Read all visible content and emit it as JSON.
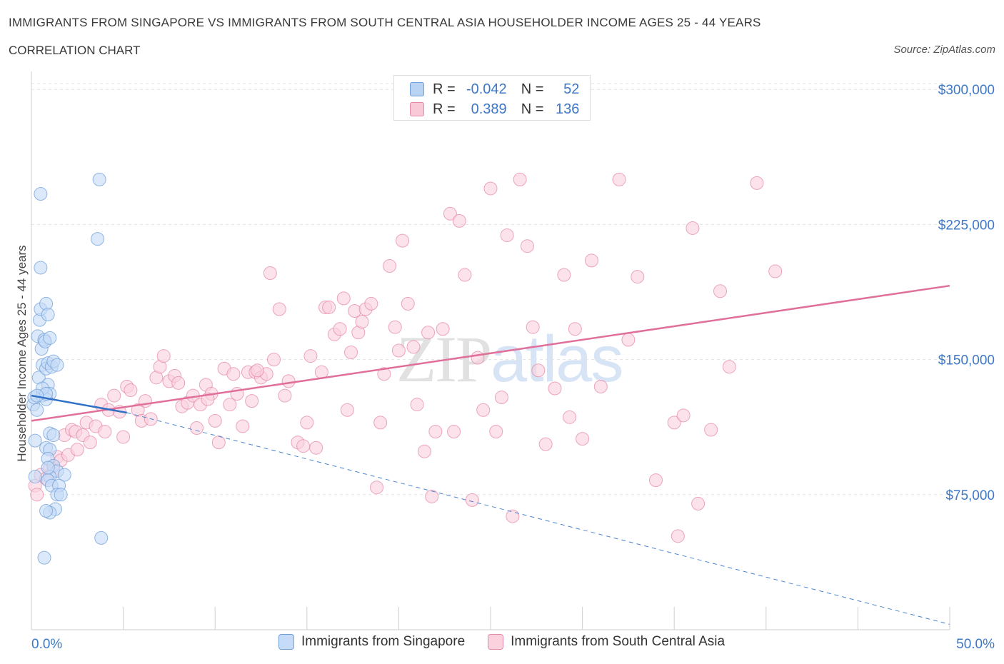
{
  "header": {
    "title": "IMMIGRANTS FROM SINGAPORE VS IMMIGRANTS FROM SOUTH CENTRAL ASIA HOUSEHOLDER INCOME AGES 25 - 44 YEARS",
    "subtitle": "CORRELATION CHART",
    "source": "Source: ZipAtlas.com"
  },
  "watermark": {
    "part1": "ZIP",
    "part2": "atlas"
  },
  "legend": {
    "rows": [
      {
        "r_label": "R =",
        "r_value": "-0.042",
        "n_label": "N =",
        "n_value": "52",
        "color": "#a8c8f0",
        "border": "#6f9fd8"
      },
      {
        "r_label": "R =",
        "r_value": "0.389",
        "n_label": "N =",
        "n_value": "136",
        "color": "#f7c0d0",
        "border": "#e58aa6"
      }
    ]
  },
  "bottom_legend": [
    {
      "label": "Immigrants from Singapore",
      "color": "#c5dbf7",
      "border": "#6f9fd8"
    },
    {
      "label": "Immigrants from South Central Asia",
      "color": "#fad1dd",
      "border": "#e58aa6"
    }
  ],
  "chart_data": {
    "type": "scatter",
    "title": "IMMIGRANTS FROM SINGAPORE VS IMMIGRANTS FROM SOUTH CENTRAL ASIA HOUSEHOLDER INCOME AGES 25 - 44 YEARS",
    "xlabel": "",
    "ylabel": "Householder Income Ages 25 - 44 years",
    "xlim": [
      0,
      50
    ],
    "ylim": [
      0,
      310000
    ],
    "x_tick_labels": [
      "0.0%",
      "50.0%"
    ],
    "y_ticks": [
      75000,
      150000,
      225000,
      300000
    ],
    "y_tick_labels": [
      "$75,000",
      "$150,000",
      "$225,000",
      "$300,000"
    ],
    "grid": "horizontal dashed",
    "series": [
      {
        "name": "Immigrants from Singapore",
        "color": "#6f9fd8",
        "fill": "#c5dbf7",
        "trend": {
          "x": [
            0,
            5.2
          ],
          "y": [
            130000,
            120500
          ]
        },
        "trend_extended": {
          "x": [
            5.2,
            50
          ],
          "y": [
            120500,
            3000
          ]
        },
        "points": [
          [
            0.1,
            125000
          ],
          [
            0.2,
            105000
          ],
          [
            0.15,
            129000
          ],
          [
            0.3,
            122000
          ],
          [
            0.4,
            140000
          ],
          [
            0.2,
            85000
          ],
          [
            0.35,
            163000
          ],
          [
            0.45,
            172000
          ],
          [
            0.5,
            178000
          ],
          [
            0.55,
            156000
          ],
          [
            0.6,
            147000
          ],
          [
            0.6,
            130000
          ],
          [
            0.7,
            161000
          ],
          [
            0.75,
            160000
          ],
          [
            0.8,
            181000
          ],
          [
            0.5,
            242000
          ],
          [
            0.5,
            201000
          ],
          [
            0.9,
            175000
          ],
          [
            1.0,
            162000
          ],
          [
            0.8,
            145000
          ],
          [
            0.9,
            148000
          ],
          [
            1.1,
            146000
          ],
          [
            1.2,
            149000
          ],
          [
            1.4,
            147000
          ],
          [
            0.9,
            136000
          ],
          [
            1.0,
            131000
          ],
          [
            0.8,
            128000
          ],
          [
            0.6,
            134000
          ],
          [
            1.0,
            109000
          ],
          [
            1.2,
            108000
          ],
          [
            0.8,
            101000
          ],
          [
            1.0,
            100000
          ],
          [
            0.9,
            95000
          ],
          [
            1.2,
            91000
          ],
          [
            1.4,
            88000
          ],
          [
            1.8,
            86000
          ],
          [
            1.0,
            85000
          ],
          [
            0.9,
            83000
          ],
          [
            1.1,
            80000
          ],
          [
            1.5,
            80000
          ],
          [
            1.4,
            75000
          ],
          [
            1.6,
            75000
          ],
          [
            1.3,
            67000
          ],
          [
            1.0,
            65000
          ],
          [
            0.8,
            66000
          ],
          [
            0.7,
            40000
          ],
          [
            3.7,
            250000
          ],
          [
            3.6,
            217000
          ],
          [
            3.8,
            51000
          ],
          [
            0.8,
            131000
          ],
          [
            0.3,
            130000
          ],
          [
            0.9,
            90000
          ]
        ]
      },
      {
        "name": "Immigrants from South Central Asia",
        "color": "#e58aa6",
        "fill": "#fad1dd",
        "trend": {
          "x": [
            0,
            50
          ],
          "y": [
            116000,
            191000
          ]
        },
        "points": [
          [
            0.2,
            80000
          ],
          [
            0.3,
            75000
          ],
          [
            0.5,
            86000
          ],
          [
            0.8,
            84000
          ],
          [
            1.0,
            90000
          ],
          [
            1.2,
            88000
          ],
          [
            1.4,
            96000
          ],
          [
            1.6,
            94000
          ],
          [
            1.8,
            108000
          ],
          [
            2.0,
            97000
          ],
          [
            2.2,
            111000
          ],
          [
            2.4,
            110000
          ],
          [
            2.5,
            100000
          ],
          [
            2.8,
            108000
          ],
          [
            3.0,
            115000
          ],
          [
            3.2,
            104000
          ],
          [
            3.5,
            113000
          ],
          [
            3.8,
            125000
          ],
          [
            4.0,
            110000
          ],
          [
            4.2,
            122000
          ],
          [
            4.5,
            130000
          ],
          [
            4.8,
            121000
          ],
          [
            5.0,
            107000
          ],
          [
            5.2,
            135000
          ],
          [
            5.4,
            133000
          ],
          [
            5.8,
            122000
          ],
          [
            6.0,
            116000
          ],
          [
            6.2,
            127000
          ],
          [
            6.5,
            117000
          ],
          [
            6.8,
            140000
          ],
          [
            7.0,
            146000
          ],
          [
            7.2,
            152000
          ],
          [
            7.5,
            138000
          ],
          [
            7.8,
            141000
          ],
          [
            8.0,
            137000
          ],
          [
            8.2,
            124000
          ],
          [
            8.5,
            126000
          ],
          [
            8.8,
            130000
          ],
          [
            9.0,
            112000
          ],
          [
            9.2,
            125000
          ],
          [
            9.5,
            136000
          ],
          [
            9.8,
            131000
          ],
          [
            10.0,
            116000
          ],
          [
            10.2,
            104000
          ],
          [
            10.5,
            145000
          ],
          [
            10.8,
            125000
          ],
          [
            11.0,
            142000
          ],
          [
            11.2,
            131000
          ],
          [
            11.5,
            113000
          ],
          [
            11.8,
            143000
          ],
          [
            12.0,
            127000
          ],
          [
            12.2,
            143000
          ],
          [
            12.5,
            140000
          ],
          [
            12.8,
            142000
          ],
          [
            13.0,
            198000
          ],
          [
            13.2,
            150000
          ],
          [
            13.5,
            178000
          ],
          [
            13.8,
            130000
          ],
          [
            14.0,
            138000
          ],
          [
            14.5,
            104000
          ],
          [
            14.8,
            102000
          ],
          [
            15.0,
            115000
          ],
          [
            15.2,
            152000
          ],
          [
            15.5,
            101000
          ],
          [
            15.8,
            143000
          ],
          [
            16.0,
            179000
          ],
          [
            16.2,
            179000
          ],
          [
            16.5,
            164000
          ],
          [
            16.8,
            167000
          ],
          [
            17.0,
            184000
          ],
          [
            17.2,
            122000
          ],
          [
            17.4,
            154000
          ],
          [
            17.6,
            177000
          ],
          [
            17.8,
            165000
          ],
          [
            18.0,
            171000
          ],
          [
            18.2,
            178000
          ],
          [
            18.5,
            181000
          ],
          [
            18.8,
            79000
          ],
          [
            19.0,
            115000
          ],
          [
            19.2,
            142000
          ],
          [
            19.5,
            202000
          ],
          [
            19.8,
            168000
          ],
          [
            20.0,
            155000
          ],
          [
            20.2,
            216000
          ],
          [
            20.5,
            181000
          ],
          [
            20.8,
            157000
          ],
          [
            21.0,
            125000
          ],
          [
            21.4,
            99000
          ],
          [
            21.6,
            165000
          ],
          [
            21.8,
            74000
          ],
          [
            22.0,
            110000
          ],
          [
            22.4,
            167000
          ],
          [
            22.8,
            231000
          ],
          [
            23.0,
            110000
          ],
          [
            23.3,
            227000
          ],
          [
            23.6,
            197000
          ],
          [
            24.0,
            72000
          ],
          [
            24.3,
            151000
          ],
          [
            24.6,
            122000
          ],
          [
            25.0,
            245000
          ],
          [
            25.3,
            110000
          ],
          [
            25.6,
            129000
          ],
          [
            25.9,
            219000
          ],
          [
            26.2,
            63000
          ],
          [
            26.6,
            250000
          ],
          [
            27.0,
            213000
          ],
          [
            27.3,
            168000
          ],
          [
            27.6,
            144000
          ],
          [
            28.0,
            103000
          ],
          [
            28.5,
            134000
          ],
          [
            29.0,
            197000
          ],
          [
            29.3,
            118000
          ],
          [
            29.6,
            167000
          ],
          [
            30.0,
            106000
          ],
          [
            30.5,
            205000
          ],
          [
            31.0,
            135000
          ],
          [
            32.0,
            250000
          ],
          [
            32.5,
            161000
          ],
          [
            33.0,
            196000
          ],
          [
            34.0,
            83000
          ],
          [
            35.0,
            115000
          ],
          [
            35.5,
            119000
          ],
          [
            36.0,
            223000
          ],
          [
            36.3,
            70000
          ],
          [
            37.0,
            111000
          ],
          [
            37.5,
            188000
          ],
          [
            38.0,
            146000
          ],
          [
            39.5,
            248000
          ],
          [
            40.5,
            199000
          ],
          [
            35.2,
            52000
          ],
          [
            9.6,
            128000
          ],
          [
            12.3,
            144000
          ]
        ]
      }
    ]
  }
}
